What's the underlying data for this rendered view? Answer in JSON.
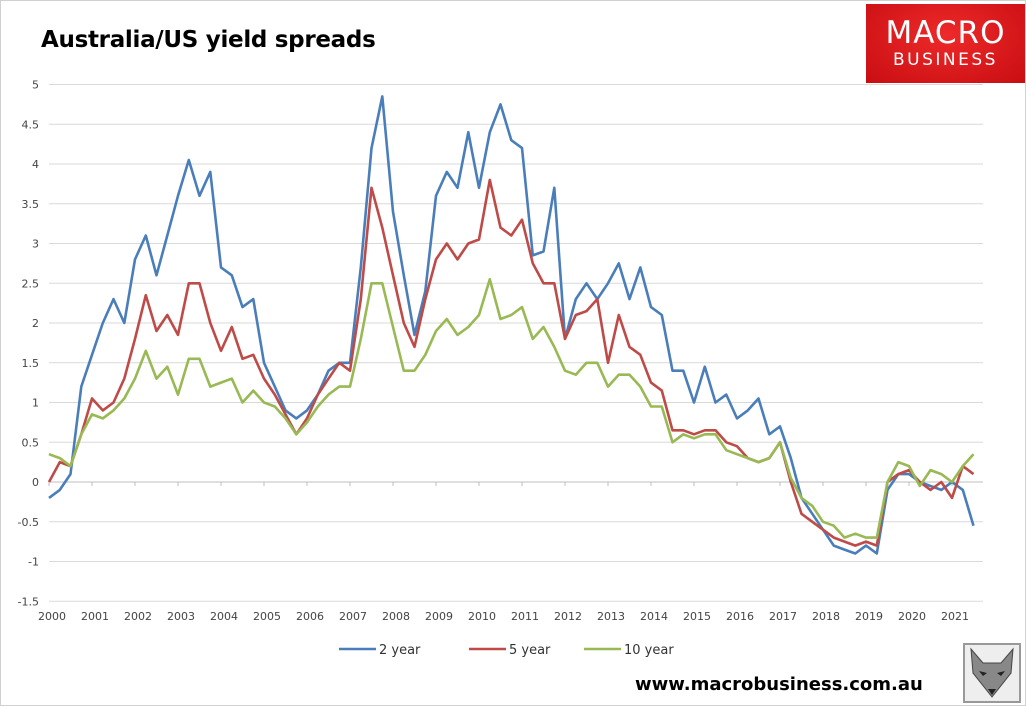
{
  "title": "Australia/US yield spreads",
  "logo": {
    "line1": "MACRO",
    "line2": "BUSINESS",
    "color": "#d9181e"
  },
  "footer": "www.macrobusiness.com.au",
  "fox_logo": "fox-icon",
  "chart_data": {
    "type": "line",
    "title": "Australia/US yield spreads",
    "xlabel": "",
    "ylabel": "",
    "xlim": [
      2000,
      2021.6
    ],
    "ylim": [
      -1.5,
      5
    ],
    "y_ticks": [
      "-1.5",
      "-1",
      "-0.5",
      "0",
      "0.5",
      "1",
      "1.5",
      "2",
      "2.5",
      "3",
      "3.5",
      "4",
      "4.5",
      "5"
    ],
    "x_ticks": [
      "2000",
      "2001",
      "2002",
      "2003",
      "2004",
      "2005",
      "2006",
      "2007",
      "2008",
      "2009",
      "2010",
      "2011",
      "2012",
      "2013",
      "2014",
      "2015",
      "2016",
      "2017",
      "2018",
      "2019",
      "2020",
      "2021"
    ],
    "grid": "horizontal",
    "legend_position": "bottom",
    "x_start": 2000,
    "x_step": 0.25,
    "series": [
      {
        "name": "2 year",
        "color": "#4a7ebb",
        "values": [
          -0.2,
          -0.1,
          0.1,
          1.2,
          1.6,
          2.0,
          2.3,
          2.0,
          2.8,
          3.1,
          2.6,
          3.1,
          3.6,
          4.05,
          3.6,
          3.9,
          2.7,
          2.6,
          2.2,
          2.3,
          1.5,
          1.2,
          0.9,
          0.8,
          0.9,
          1.1,
          1.4,
          1.5,
          1.5,
          2.7,
          4.2,
          4.85,
          3.4,
          2.6,
          1.85,
          2.4,
          3.6,
          3.9,
          3.7,
          4.4,
          3.7,
          4.4,
          4.75,
          4.3,
          4.2,
          2.85,
          2.9,
          3.7,
          1.8,
          2.3,
          2.5,
          2.3,
          2.5,
          2.75,
          2.3,
          2.7,
          2.2,
          2.1,
          1.4,
          1.4,
          1.0,
          1.45,
          1.0,
          1.1,
          0.8,
          0.9,
          1.05,
          0.6,
          0.7,
          0.3,
          -0.2,
          -0.4,
          -0.6,
          -0.8,
          -0.85,
          -0.9,
          -0.8,
          -0.9,
          -0.1,
          0.1,
          0.1,
          0.0,
          -0.05,
          -0.1,
          0.0,
          -0.1,
          -0.55
        ]
      },
      {
        "name": "5 year",
        "color": "#be4b48",
        "values": [
          0.0,
          0.25,
          0.2,
          0.6,
          1.05,
          0.9,
          1.0,
          1.3,
          1.8,
          2.35,
          1.9,
          2.1,
          1.85,
          2.5,
          2.5,
          2.0,
          1.65,
          1.95,
          1.55,
          1.6,
          1.3,
          1.1,
          0.85,
          0.6,
          0.8,
          1.1,
          1.3,
          1.5,
          1.4,
          2.3,
          3.7,
          3.2,
          2.6,
          2.0,
          1.7,
          2.3,
          2.8,
          3.0,
          2.8,
          3.0,
          3.05,
          3.8,
          3.2,
          3.1,
          3.3,
          2.75,
          2.5,
          2.5,
          1.8,
          2.1,
          2.15,
          2.3,
          1.5,
          2.1,
          1.7,
          1.6,
          1.25,
          1.15,
          0.65,
          0.65,
          0.6,
          0.65,
          0.65,
          0.5,
          0.45,
          0.3,
          0.25,
          0.3,
          0.5,
          0.0,
          -0.4,
          -0.5,
          -0.6,
          -0.7,
          -0.75,
          -0.8,
          -0.75,
          -0.8,
          0.0,
          0.1,
          0.15,
          0.0,
          -0.1,
          0.0,
          -0.2,
          0.2,
          0.1
        ]
      },
      {
        "name": "10 year",
        "color": "#98b954",
        "values": [
          0.35,
          0.3,
          0.2,
          0.6,
          0.85,
          0.8,
          0.9,
          1.05,
          1.3,
          1.65,
          1.3,
          1.45,
          1.1,
          1.55,
          1.55,
          1.2,
          1.25,
          1.3,
          1.0,
          1.15,
          1.0,
          0.95,
          0.8,
          0.6,
          0.75,
          0.95,
          1.1,
          1.2,
          1.2,
          1.8,
          2.5,
          2.5,
          1.95,
          1.4,
          1.4,
          1.6,
          1.9,
          2.05,
          1.85,
          1.95,
          2.1,
          2.55,
          2.05,
          2.1,
          2.2,
          1.8,
          1.95,
          1.7,
          1.4,
          1.35,
          1.5,
          1.5,
          1.2,
          1.35,
          1.35,
          1.2,
          0.95,
          0.95,
          0.5,
          0.6,
          0.55,
          0.6,
          0.6,
          0.4,
          0.35,
          0.3,
          0.25,
          0.3,
          0.5,
          0.05,
          -0.2,
          -0.3,
          -0.5,
          -0.55,
          -0.7,
          -0.65,
          -0.7,
          -0.7,
          0.0,
          0.25,
          0.2,
          -0.05,
          0.15,
          0.1,
          0.0,
          0.2,
          0.35
        ]
      }
    ]
  }
}
